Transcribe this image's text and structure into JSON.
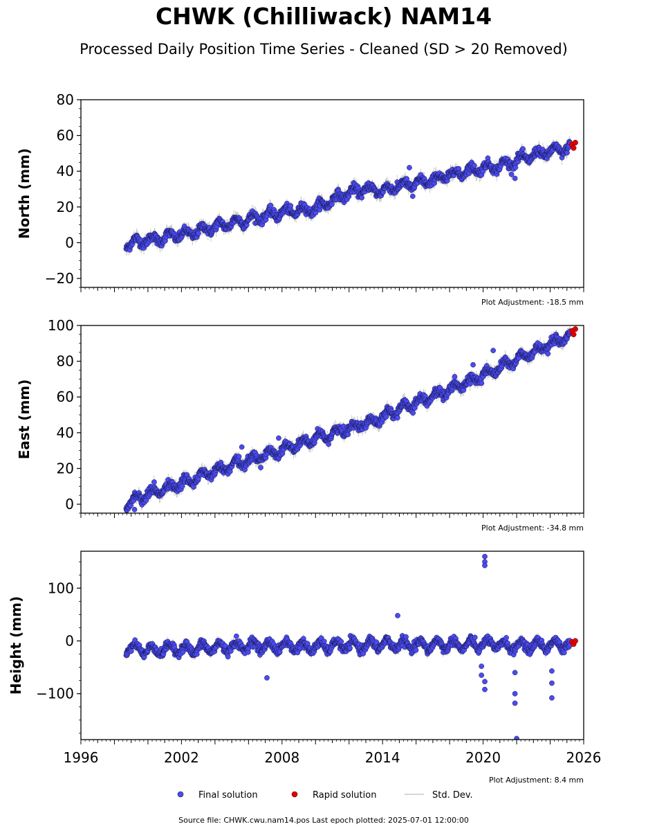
{
  "title": "CHWK (Chilliwack) NAM14",
  "subtitle": "Processed Daily Position Time Series - Cleaned (SD > 20 Removed)",
  "legend": {
    "final": "Final solution",
    "rapid": "Rapid solution",
    "std": "Std. Dev."
  },
  "footer": "Source file: CHWK.cwu.nam14.pos  Last epoch plotted: 2025-07-01 12:00:00",
  "colors": {
    "final": "#4b4bf0",
    "final_edge": "#15154a",
    "rapid": "#e00000",
    "std": "#c8c8c8"
  },
  "chart_data": [
    {
      "type": "scatter",
      "ylabel": "North (mm)",
      "adjustment": "Plot Adjustment: -18.5 mm",
      "xlim": [
        1996,
        2026
      ],
      "ylim": [
        -25,
        80
      ],
      "yticks": [
        -20,
        0,
        20,
        40,
        60,
        80
      ],
      "ytick_labels": [
        "−20",
        "0",
        "20",
        "40",
        "60",
        "80"
      ],
      "series": [
        {
          "role": "final",
          "x": [
            1998.7,
            1999.5,
            2000.5,
            2001.5,
            2002.5,
            2003.2,
            2004.0,
            2005.0,
            2006.0,
            2007.0,
            2008.0,
            2009.0,
            2010.0,
            2011.0,
            2012.0,
            2013.0,
            2014.0,
            2015.0,
            2016.0,
            2017.0,
            2018.0,
            2019.0,
            2020.0,
            2021.0,
            2022.0,
            2023.0,
            2024.0,
            2025.2
          ],
          "y": [
            -1,
            1,
            2,
            4,
            5,
            7,
            9,
            11,
            13,
            15,
            17,
            18,
            19,
            24,
            28,
            30,
            29,
            32,
            33,
            35,
            38,
            40,
            42,
            43,
            46,
            49,
            51,
            53
          ]
        },
        {
          "role": "rapid",
          "x": [
            2025.3,
            2025.4,
            2025.5
          ],
          "y": [
            55,
            53,
            56
          ]
        }
      ],
      "outliers": [
        [
          2015.6,
          42
        ],
        [
          2015.8,
          26
        ],
        [
          2021.9,
          36
        ]
      ]
    },
    {
      "type": "scatter",
      "ylabel": "East (mm)",
      "adjustment": "Plot Adjustment: -34.8 mm",
      "xlim": [
        1996,
        2026
      ],
      "ylim": [
        -5,
        100
      ],
      "yticks": [
        0,
        20,
        40,
        60,
        80,
        100
      ],
      "ytick_labels": [
        "0",
        "20",
        "40",
        "60",
        "80",
        "100"
      ],
      "series": [
        {
          "role": "final",
          "x": [
            1998.7,
            1999.5,
            2000.5,
            2001.5,
            2002.5,
            2003.5,
            2004.5,
            2005.5,
            2006.5,
            2007.5,
            2008.5,
            2009.5,
            2010.5,
            2011.5,
            2012.5,
            2013.5,
            2014.5,
            2015.5,
            2016.5,
            2017.5,
            2018.5,
            2019.5,
            2020.5,
            2021.5,
            2022.5,
            2023.5,
            2024.5,
            2025.2
          ],
          "y": [
            0,
            4,
            7,
            10,
            13,
            17,
            20,
            23,
            26,
            29,
            32,
            35,
            38,
            41,
            44,
            47,
            51,
            55,
            59,
            62,
            66,
            70,
            74,
            79,
            83,
            87,
            91,
            94
          ]
        },
        {
          "role": "rapid",
          "x": [
            2025.3,
            2025.4,
            2025.5
          ],
          "y": [
            97,
            95,
            98
          ]
        }
      ],
      "outliers": [
        [
          1999.2,
          -3
        ],
        [
          2005.6,
          32
        ],
        [
          2007.8,
          37
        ],
        [
          2019.4,
          78
        ],
        [
          2020.6,
          86
        ]
      ]
    },
    {
      "type": "scatter",
      "ylabel": "Height (mm)",
      "adjustment": "Plot Adjustment: 8.4 mm",
      "xlim": [
        1996,
        2026
      ],
      "ylim": [
        -187,
        170
      ],
      "yticks": [
        -100,
        0,
        100
      ],
      "ytick_labels": [
        "−100",
        "0",
        "100"
      ],
      "xticks": [
        1996,
        2002,
        2008,
        2014,
        2020,
        2026
      ],
      "xtick_labels": [
        "1996",
        "2002",
        "2008",
        "2014",
        "2020",
        "2026"
      ],
      "series": [
        {
          "role": "final",
          "x": [
            1998.7,
            1999.5,
            2000.5,
            2001.5,
            2002.5,
            2003.5,
            2004.5,
            2005.5,
            2006.5,
            2007.5,
            2008.5,
            2009.5,
            2010.5,
            2011.5,
            2012.5,
            2013.5,
            2014.5,
            2015.5,
            2016.5,
            2017.5,
            2018.5,
            2019.5,
            2020.5,
            2021.5,
            2022.5,
            2023.5,
            2024.5,
            2025.2
          ],
          "y": [
            -12,
            -15,
            -18,
            -14,
            -16,
            -13,
            -12,
            -10,
            -8,
            -11,
            -9,
            -12,
            -10,
            -8,
            -9,
            -7,
            -6,
            -8,
            -9,
            -6,
            -8,
            -7,
            -6,
            -10,
            -9,
            -8,
            -7,
            -9
          ]
        },
        {
          "role": "rapid",
          "x": [
            2025.3,
            2025.4,
            2025.5
          ],
          "y": [
            -2,
            -6,
            0
          ]
        }
      ],
      "outliers": [
        [
          2007.1,
          -70
        ],
        [
          2014.9,
          48
        ],
        [
          2020.1,
          160
        ],
        [
          2020.1,
          150
        ],
        [
          2020.1,
          143
        ],
        [
          2019.9,
          -48
        ],
        [
          2019.9,
          -65
        ],
        [
          2020.1,
          -77
        ],
        [
          2020.1,
          -92
        ],
        [
          2021.9,
          -100
        ],
        [
          2021.9,
          -118
        ],
        [
          2021.9,
          -60
        ],
        [
          2022.0,
          -185
        ],
        [
          2024.1,
          -57
        ],
        [
          2024.1,
          -80
        ],
        [
          2024.1,
          -108
        ]
      ]
    }
  ]
}
